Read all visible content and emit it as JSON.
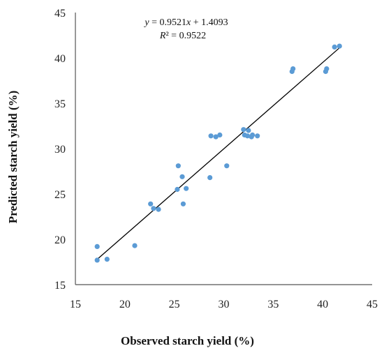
{
  "chart_data": {
    "type": "scatter",
    "xlabel": "Observed starch yield (%)",
    "ylabel": "Predicted starch yield  (%)",
    "xlim": [
      15,
      45
    ],
    "ylim": [
      15,
      45
    ],
    "xticks": [
      "15",
      "20",
      "25",
      "30",
      "35",
      "40",
      "45"
    ],
    "yticks": [
      "15",
      "20",
      "25",
      "30",
      "35",
      "40",
      "45"
    ],
    "grid": false,
    "marker_color": "#5b9bd5",
    "line_color": "#000000",
    "equation": "y = 0.9521x + 1.4093",
    "r_squared": "R² = 0.9522",
    "trendline": {
      "slope": 0.9521,
      "intercept": 1.4093,
      "x_range": [
        17.2,
        41.8
      ]
    },
    "points": [
      {
        "x": 17.2,
        "y": 19.2
      },
      {
        "x": 17.2,
        "y": 17.7
      },
      {
        "x": 18.2,
        "y": 17.8
      },
      {
        "x": 21.0,
        "y": 19.3
      },
      {
        "x": 22.6,
        "y": 23.9
      },
      {
        "x": 22.9,
        "y": 23.4
      },
      {
        "x": 23.4,
        "y": 23.3
      },
      {
        "x": 25.3,
        "y": 25.5
      },
      {
        "x": 25.4,
        "y": 28.1
      },
      {
        "x": 25.8,
        "y": 26.9
      },
      {
        "x": 25.9,
        "y": 23.9
      },
      {
        "x": 26.2,
        "y": 25.6
      },
      {
        "x": 28.6,
        "y": 26.8
      },
      {
        "x": 28.7,
        "y": 31.4
      },
      {
        "x": 29.2,
        "y": 31.3
      },
      {
        "x": 29.6,
        "y": 31.5
      },
      {
        "x": 30.3,
        "y": 28.1
      },
      {
        "x": 32.0,
        "y": 32.1
      },
      {
        "x": 32.1,
        "y": 31.5
      },
      {
        "x": 32.4,
        "y": 31.4
      },
      {
        "x": 32.5,
        "y": 32.0
      },
      {
        "x": 32.8,
        "y": 31.3
      },
      {
        "x": 32.9,
        "y": 31.5
      },
      {
        "x": 33.4,
        "y": 31.4
      },
      {
        "x": 36.9,
        "y": 38.5
      },
      {
        "x": 37.0,
        "y": 38.8
      },
      {
        "x": 40.3,
        "y": 38.5
      },
      {
        "x": 40.4,
        "y": 38.8
      },
      {
        "x": 41.2,
        "y": 41.2
      },
      {
        "x": 41.7,
        "y": 41.3
      }
    ]
  }
}
